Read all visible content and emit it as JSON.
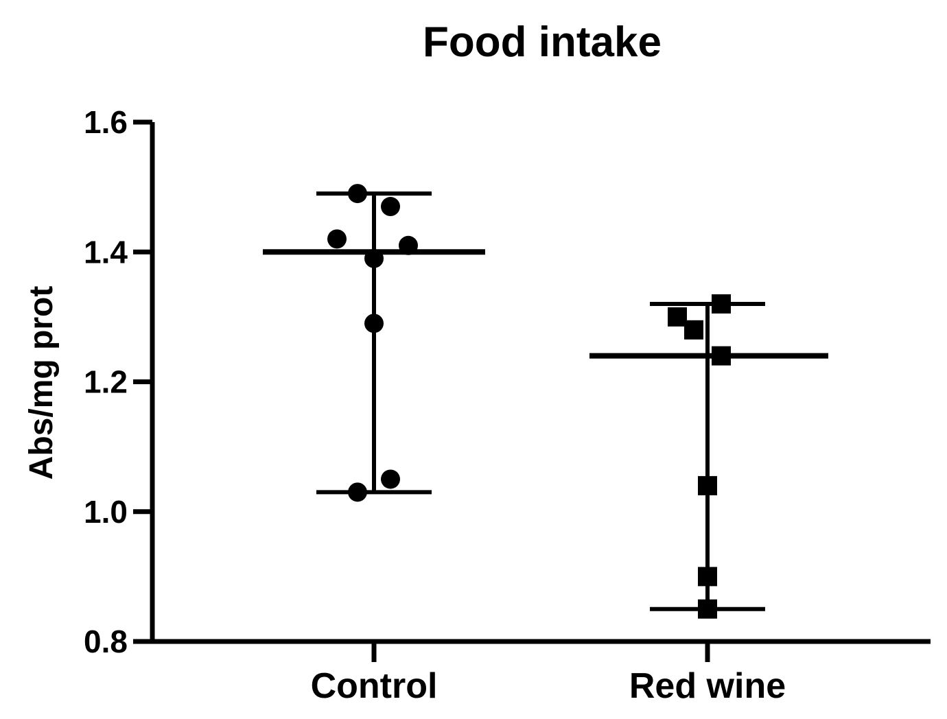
{
  "chart_data": {
    "type": "scatter",
    "title": "Food intake",
    "ylabel": "Abs/mg prot",
    "xlabel": "",
    "ylim": [
      0.8,
      1.6
    ],
    "yticks": [
      "0.8",
      "1.0",
      "1.2",
      "1.4",
      "1.6"
    ],
    "ytick_values": [
      0.8,
      1.0,
      1.2,
      1.4,
      1.6
    ],
    "categories": [
      "Control",
      "Red wine"
    ],
    "grid": false,
    "series": [
      {
        "marker": "circle",
        "color": "#000000",
        "mean": 1.4,
        "min": 1.03,
        "max": 1.49,
        "points": [
          {
            "offset": -0.12,
            "y": 1.49
          },
          {
            "offset": 0.12,
            "y": 1.47
          },
          {
            "offset": -0.27,
            "y": 1.42
          },
          {
            "offset": 0.25,
            "y": 1.41
          },
          {
            "offset": 0.0,
            "y": 1.39
          },
          {
            "offset": 0.0,
            "y": 1.29
          },
          {
            "offset": 0.12,
            "y": 1.05
          },
          {
            "offset": -0.12,
            "y": 1.03
          }
        ]
      },
      {
        "marker": "square",
        "color": "#000000",
        "mean": 1.24,
        "min": 0.85,
        "max": 1.32,
        "points": [
          {
            "offset": 0.1,
            "y": 1.32
          },
          {
            "offset": -0.22,
            "y": 1.3
          },
          {
            "offset": -0.1,
            "y": 1.28
          },
          {
            "offset": 0.1,
            "y": 1.24
          },
          {
            "offset": 0.0,
            "y": 1.04
          },
          {
            "offset": 0.0,
            "y": 0.9
          },
          {
            "offset": 0.0,
            "y": 0.85
          }
        ]
      }
    ]
  }
}
